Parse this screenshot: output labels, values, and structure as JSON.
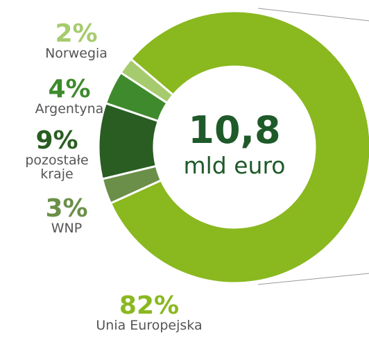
{
  "chart_data": {
    "type": "donut",
    "center_value": "10,8",
    "center_label": "mld euro",
    "categories": [
      "Norwegia",
      "Argentyna",
      "pozostałe kraje",
      "WNP",
      "Unia Europejska"
    ],
    "values": [
      2,
      4,
      9,
      3,
      82
    ],
    "value_labels": [
      "2%",
      "4%",
      "9%",
      "3%",
      "82%"
    ],
    "colors": [
      "#a6cb6e",
      "#3e8a2c",
      "#2a5d22",
      "#6b8f48",
      "#8ab81f"
    ]
  }
}
